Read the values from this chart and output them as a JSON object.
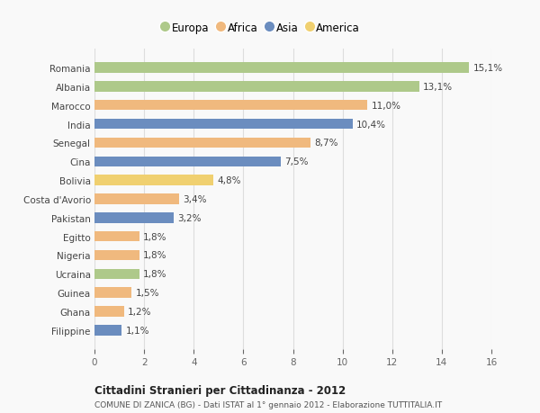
{
  "categories": [
    "Romania",
    "Albania",
    "Marocco",
    "India",
    "Senegal",
    "Cina",
    "Bolivia",
    "Costa d'Avorio",
    "Pakistan",
    "Egitto",
    "Nigeria",
    "Ucraina",
    "Guinea",
    "Ghana",
    "Filippine"
  ],
  "values": [
    15.1,
    13.1,
    11.0,
    10.4,
    8.7,
    7.5,
    4.8,
    3.4,
    3.2,
    1.8,
    1.8,
    1.8,
    1.5,
    1.2,
    1.1
  ],
  "labels": [
    "15,1%",
    "13,1%",
    "11,0%",
    "10,4%",
    "8,7%",
    "7,5%",
    "4,8%",
    "3,4%",
    "3,2%",
    "1,8%",
    "1,8%",
    "1,8%",
    "1,5%",
    "1,2%",
    "1,1%"
  ],
  "continents": [
    "Europa",
    "Europa",
    "Africa",
    "Asia",
    "Africa",
    "Asia",
    "America",
    "Africa",
    "Asia",
    "Africa",
    "Africa",
    "Europa",
    "Africa",
    "Africa",
    "Asia"
  ],
  "colors": {
    "Europa": "#aec98a",
    "Africa": "#f0b97e",
    "Asia": "#6b8dbf",
    "America": "#f0d070"
  },
  "legend_order": [
    "Europa",
    "Africa",
    "Asia",
    "America"
  ],
  "xlim": [
    0,
    16
  ],
  "xticks": [
    0,
    2,
    4,
    6,
    8,
    10,
    12,
    14,
    16
  ],
  "title": "Cittadini Stranieri per Cittadinanza - 2012",
  "subtitle": "COMUNE DI ZANICA (BG) - Dati ISTAT al 1° gennaio 2012 - Elaborazione TUTTITALIA.IT",
  "background_color": "#f9f9f9",
  "grid_color": "#dddddd",
  "bar_height": 0.55
}
